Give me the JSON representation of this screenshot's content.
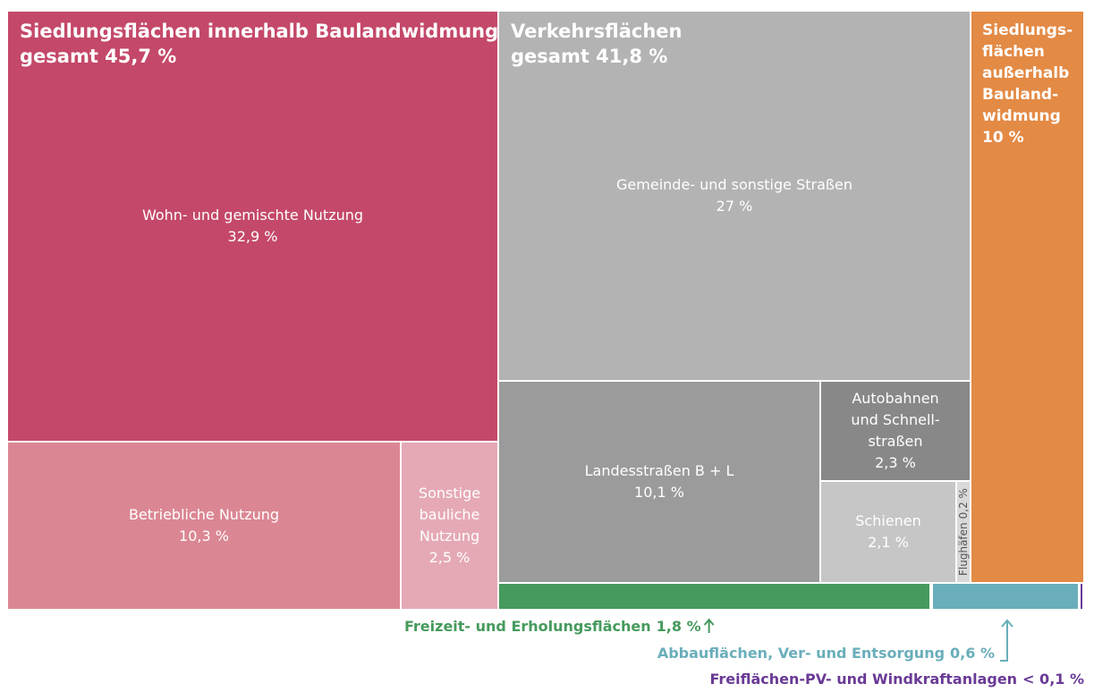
{
  "chart_data": {
    "type": "treemap",
    "items": [
      {
        "name": [
          "Siedlungsflächen innerhalb Baulandwidmung"
        ],
        "value": 45.7,
        "value_label": "gesamt 45,7 %",
        "color": "#c44869",
        "children": [
          {
            "name": [
              "Wohn- und gemischte Nutzung"
            ],
            "value": 32.9,
            "value_label": "32,9 %",
            "color": "#c44869"
          },
          {
            "name": [
              "Betriebliche Nutzung"
            ],
            "value": 10.3,
            "value_label": "10,3 %",
            "color": "#db8793"
          },
          {
            "name": [
              "Sonstige",
              "bauliche",
              "Nutzung"
            ],
            "value": 2.5,
            "value_label": "2,5 %",
            "color": "#e5a9b5"
          }
        ]
      },
      {
        "name": [
          "Verkehrsflächen"
        ],
        "value": 41.8,
        "value_label": "gesamt 41,8 %",
        "color": "#b3b3b3",
        "children": [
          {
            "name": [
              "Gemeinde- und sonstige Straßen"
            ],
            "value": 27,
            "value_label": "27 %",
            "color": "#b3b3b3"
          },
          {
            "name": [
              "Landesstraßen B + L"
            ],
            "value": 10.1,
            "value_label": "10,1 %",
            "color": "#9b9b9b"
          },
          {
            "name": [
              "Autobahnen",
              "und Schnell-",
              "straßen"
            ],
            "value": 2.3,
            "value_label": "2,3 %",
            "color": "#888888"
          },
          {
            "name": [
              "Schienen"
            ],
            "value": 2.1,
            "value_label": "2,1 %",
            "color": "#c6c6c6"
          },
          {
            "name": [
              "Flughäfen"
            ],
            "value": 0.2,
            "value_label": "0,2 %",
            "color": "#d9d9d9"
          }
        ]
      },
      {
        "name": [
          "Siedlungs-",
          "flächen",
          "außerhalb",
          "Bauland-",
          "widmung"
        ],
        "value": 10,
        "value_label": "10 %",
        "color": "#e38a45"
      },
      {
        "name": [
          "Freizeit- und Erholungsflächen"
        ],
        "value": 1.8,
        "value_label": "1,8 %",
        "color": "#459a5c"
      },
      {
        "name": [
          "Abbauflächen, Ver- und Entsorgung"
        ],
        "value": 0.6,
        "value_label": "0,6 %",
        "color": "#6aaebb"
      },
      {
        "name": [
          "Freiflächen-PV- und Windkraftanlagen"
        ],
        "value": 0.1,
        "value_label": "< 0,1 %",
        "color": "#6a3a96"
      }
    ]
  }
}
